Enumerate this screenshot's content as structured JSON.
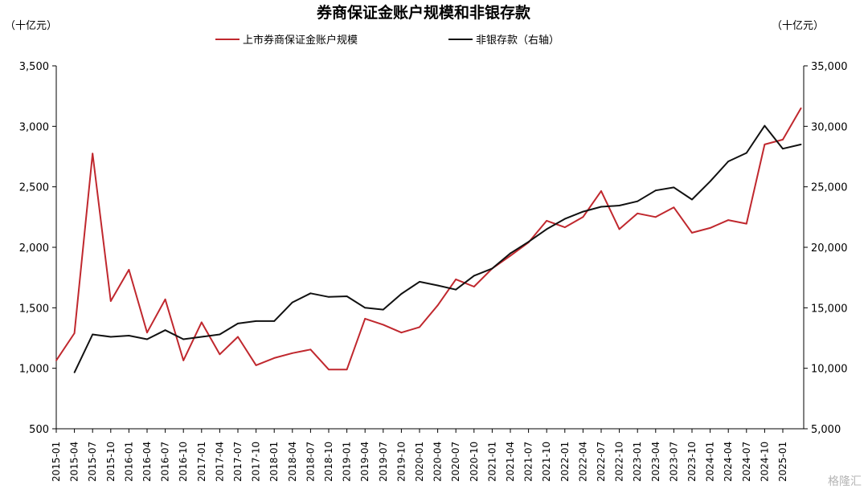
{
  "chart_data": {
    "type": "line",
    "title": "券商保证金账户规模和非银存款",
    "left_unit": "（十亿元）",
    "right_unit": "（十亿元）",
    "y_left_lim": [
      500,
      3500
    ],
    "y_right_lim": [
      5000,
      35000
    ],
    "y_left_ticks": [
      "500",
      "1,000",
      "1,500",
      "2,000",
      "2,500",
      "3,000",
      "3,500"
    ],
    "y_right_ticks": [
      "5,000",
      "10,000",
      "15,000",
      "20,000",
      "25,000",
      "30,000",
      "35,000"
    ],
    "x_labels": [
      "2015-01",
      "2015-04",
      "2015-07",
      "2015-10",
      "2016-01",
      "2016-04",
      "2016-07",
      "2016-10",
      "2017-01",
      "2017-04",
      "2017-07",
      "2017-10",
      "2018-01",
      "2018-04",
      "2018-07",
      "2018-10",
      "2019-01",
      "2019-04",
      "2019-07",
      "2019-10",
      "2020-01",
      "2020-04",
      "2020-07",
      "2020-10",
      "2021-01",
      "2021-04",
      "2021-07",
      "2021-10",
      "2022-01",
      "2022-04",
      "2022-07",
      "2022-10",
      "2023-01",
      "2023-04",
      "2023-07",
      "2023-10",
      "2024-01",
      "2024-04",
      "2024-07",
      "2024-10",
      "2025-01"
    ],
    "grid": false,
    "legend_position": "top",
    "series": [
      {
        "name": "上市券商保证金账户规模",
        "axis": "left",
        "color": "#c0282e",
        "x": [
          "2015-01",
          "2015-04",
          "2015-07",
          "2015-10",
          "2016-01",
          "2016-04",
          "2016-07",
          "2016-10",
          "2017-01",
          "2017-04",
          "2017-07",
          "2017-10",
          "2018-01",
          "2018-04",
          "2018-07",
          "2018-10",
          "2019-01",
          "2019-04",
          "2019-07",
          "2019-10",
          "2020-01",
          "2020-04",
          "2020-07",
          "2020-10",
          "2021-01",
          "2021-04",
          "2021-07",
          "2021-10",
          "2022-01",
          "2022-04",
          "2022-07",
          "2022-10",
          "2023-01",
          "2023-04",
          "2023-07",
          "2023-10",
          "2024-01",
          "2024-04",
          "2024-07",
          "2024-10",
          "2025-01",
          "2025-04"
        ],
        "values": [
          1065,
          1290,
          2775,
          1555,
          1815,
          1295,
          1570,
          1065,
          1380,
          1115,
          1260,
          1025,
          1085,
          1125,
          1155,
          990,
          990,
          1410,
          1360,
          1295,
          1340,
          1520,
          1735,
          1675,
          1825,
          1930,
          2040,
          2220,
          2165,
          2250,
          2465,
          2150,
          2280,
          2250,
          2330,
          2120,
          2160,
          2225,
          2195,
          2850,
          2890,
          3150
        ]
      },
      {
        "name": "非银存款（右轴）",
        "axis": "right",
        "color": "#111111",
        "x": [
          "2015-04",
          "2015-07",
          "2015-10",
          "2016-01",
          "2016-04",
          "2016-07",
          "2016-10",
          "2017-01",
          "2017-04",
          "2017-07",
          "2017-10",
          "2018-01",
          "2018-04",
          "2018-07",
          "2018-10",
          "2019-01",
          "2019-04",
          "2019-07",
          "2019-10",
          "2020-01",
          "2020-04",
          "2020-07",
          "2020-10",
          "2021-01",
          "2021-04",
          "2021-07",
          "2021-10",
          "2022-01",
          "2022-04",
          "2022-07",
          "2022-10",
          "2023-01",
          "2023-04",
          "2023-07",
          "2023-10",
          "2024-01",
          "2024-04",
          "2024-07",
          "2024-10",
          "2025-01",
          "2025-04"
        ],
        "values": [
          9650,
          12800,
          12600,
          12700,
          12400,
          13150,
          12400,
          12600,
          12800,
          13700,
          13900,
          13900,
          15450,
          16200,
          15900,
          15950,
          15000,
          14850,
          16150,
          17150,
          16850,
          16500,
          17650,
          18250,
          19500,
          20450,
          21500,
          22350,
          22950,
          23350,
          23450,
          23800,
          24700,
          24950,
          23950,
          25450,
          27100,
          27800,
          30050,
          28150,
          28500
        ]
      }
    ],
    "watermark": "格隆汇"
  }
}
